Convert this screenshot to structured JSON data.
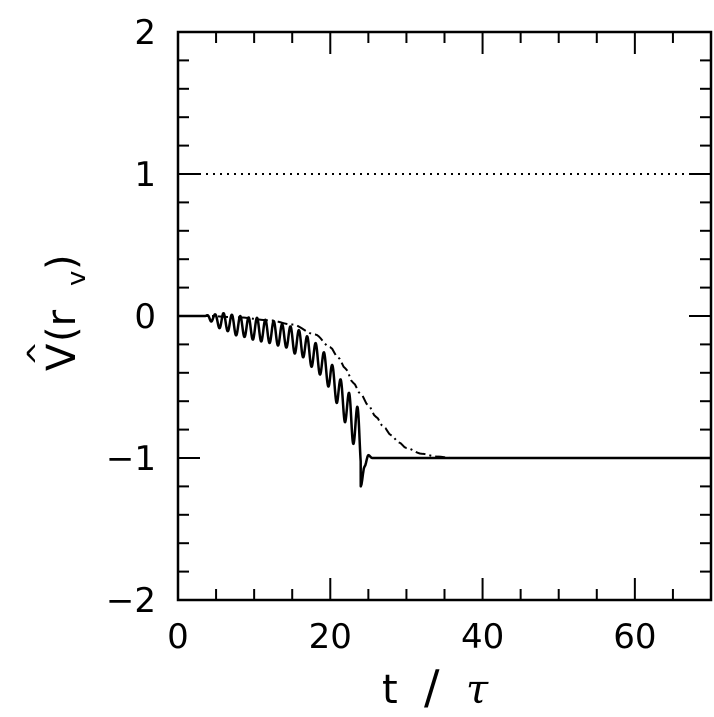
{
  "chart_data": {
    "type": "line",
    "xlabel": {
      "lhs": "t",
      "slash": "/",
      "rhs": "τ"
    },
    "ylabel": {
      "main": "V",
      "hat": "^",
      "open": "(r",
      "sub": "v",
      "close": ")"
    },
    "xlim": [
      0,
      70
    ],
    "ylim": [
      -2,
      2
    ],
    "x_major_ticks": [
      0,
      20,
      40,
      60
    ],
    "x_tick_labels": [
      "0",
      "20",
      "40",
      "60"
    ],
    "y_major_ticks": [
      -2,
      -1,
      0,
      1,
      2
    ],
    "y_tick_labels": [
      "−2",
      "−1",
      "0",
      "1",
      "2"
    ],
    "x_minor_step": 5,
    "y_minor_step": 0.2,
    "series": [
      {
        "style": "dotted",
        "points": [
          [
            0,
            1
          ],
          [
            70,
            1
          ]
        ]
      },
      {
        "style": "dash-dot",
        "points": [
          [
            0,
            0
          ],
          [
            4,
            0
          ],
          [
            8,
            -0.01
          ],
          [
            12,
            -0.03
          ],
          [
            15,
            -0.06
          ],
          [
            18,
            -0.13
          ],
          [
            20,
            -0.22
          ],
          [
            21,
            -0.29
          ],
          [
            22,
            -0.37
          ],
          [
            23,
            -0.47
          ],
          [
            24,
            -0.55
          ],
          [
            25,
            -0.63
          ],
          [
            26,
            -0.71
          ],
          [
            27,
            -0.78
          ],
          [
            28,
            -0.84
          ],
          [
            29,
            -0.89
          ],
          [
            30,
            -0.93
          ],
          [
            32,
            -0.97
          ],
          [
            34,
            -0.99
          ],
          [
            36,
            -1.0
          ],
          [
            70,
            -1.0
          ]
        ]
      },
      {
        "style": "solid",
        "oscillation": {
          "start": 3.5,
          "period": 1.1,
          "envelope": [
            [
              3.5,
              0
            ],
            [
              4.5,
              0.03
            ],
            [
              6,
              0.06
            ],
            [
              8,
              0.07
            ],
            [
              11,
              0.08
            ],
            [
              14,
              0.08
            ],
            [
              16,
              0.09
            ],
            [
              18,
              0.09
            ],
            [
              20,
              0.09
            ],
            [
              21,
              0.1
            ],
            [
              22,
              0.12
            ],
            [
              23,
              0.16
            ],
            [
              24,
              0.2
            ]
          ],
          "center": [
            [
              3.5,
              0
            ],
            [
              6,
              -0.04
            ],
            [
              8,
              -0.07
            ],
            [
              10,
              -0.09
            ],
            [
              12,
              -0.11
            ],
            [
              14,
              -0.14
            ],
            [
              16,
              -0.19
            ],
            [
              18,
              -0.28
            ],
            [
              19,
              -0.34
            ],
            [
              20,
              -0.42
            ],
            [
              21,
              -0.52
            ],
            [
              22,
              -0.63
            ],
            [
              23,
              -0.74
            ],
            [
              24,
              -0.88
            ],
            [
              24.6,
              -0.97
            ]
          ]
        },
        "tail": [
          [
            24.0,
            -1.2
          ],
          [
            24.5,
            -1.06
          ],
          [
            25.0,
            -0.98
          ],
          [
            25.5,
            -1.0
          ],
          [
            70,
            -1.0
          ]
        ]
      }
    ]
  }
}
